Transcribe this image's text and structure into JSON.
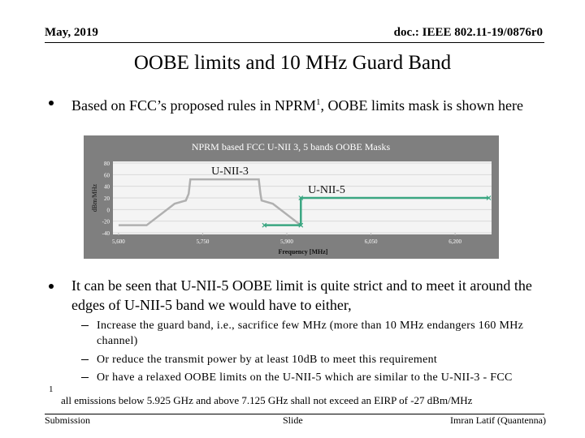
{
  "header": {
    "date": "May, 2019",
    "doc": "doc.: IEEE 802.11-19/0876r0"
  },
  "title": "OOBE limits and 10 MHz Guard Band",
  "bullet1": {
    "before": "Based on FCC’s proposed rules in NPRM",
    "sup": "1",
    "after": ", OOBE limits mask is shown here"
  },
  "chart_data": {
    "type": "line",
    "title": "NPRM based FCC U-NII 3, 5 bands OOBE Masks",
    "x_label": "Frequency [MHz]",
    "y_label": "dBm/MHz",
    "xlim": [
      5590,
      6265
    ],
    "ylim": [
      -40,
      80
    ],
    "xticks": [
      {
        "value": 5600,
        "label": "5,600"
      },
      {
        "value": 5750,
        "label": "5,750"
      },
      {
        "value": 5900,
        "label": "5,900"
      },
      {
        "value": 6050,
        "label": "6,050"
      },
      {
        "value": 6200,
        "label": "6,200"
      }
    ],
    "yticks": [
      80,
      60,
      40,
      20,
      0,
      -20,
      -40
    ],
    "grid": true,
    "series": [
      {
        "color": "#b0b0b0",
        "marker": "none",
        "x": [
          5600,
          5650,
          5700,
          5720,
          5725,
          5728,
          5850,
          5853,
          5855,
          5875,
          5925
        ],
        "values": [
          -27,
          -27,
          10,
          15.6,
          27,
          52,
          52,
          27,
          15.6,
          10,
          -27
        ]
      },
      {
        "color": "#3aa681",
        "marker": "x",
        "x": [
          5860,
          5925,
          5925,
          6260
        ],
        "values": [
          -27,
          -27,
          20,
          20
        ]
      }
    ],
    "annotations": [
      "U-NII-3",
      "U-NII-5"
    ]
  },
  "bullet2": "It can be seen that U-NII-5 OOBE limit is quite strict and to meet it around the edges of U-NII-5 band we would have to either,",
  "sub_bullets": [
    "Increase the guard band, i.e., sacrifice few MHz (more than 10 MHz endangers 160 MHz channel)",
    "Or reduce the transmit power by at least 10dB to meet this requirement",
    "Or have a relaxed OOBE limits on the U-NII-5 which are similar to the U-NII-3 - FCC"
  ],
  "footnote": {
    "mark": "1",
    "text": "all emissions below 5.925 GHz and above 7.125 GHz shall not exceed an EIRP of -27 dBm/MHz"
  },
  "footer": {
    "left": "Submission",
    "center": "Slide",
    "right": "Imran Latif (Quantenna)"
  }
}
